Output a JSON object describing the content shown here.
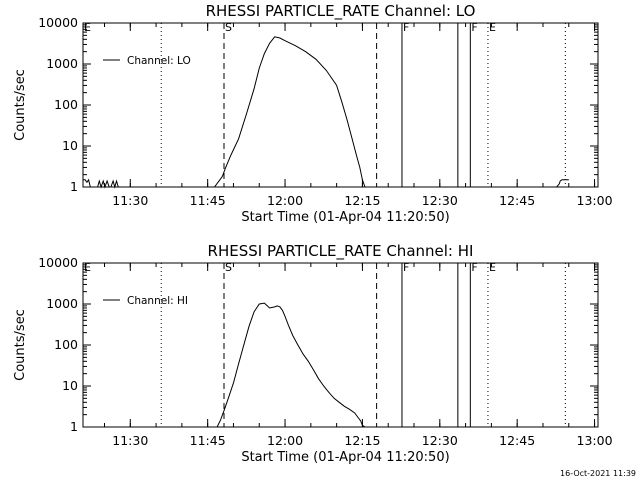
{
  "chart_data": [
    {
      "type": "line",
      "title": "RHESSI PARTICLE_RATE Channel: LO",
      "xlabel": "Start Time (01-Apr-04 11:20:50)",
      "ylabel": "Counts/sec",
      "y_scale": "log",
      "ylim": [
        1,
        10000
      ],
      "xlim": [
        "11:20:50",
        "13:00:40"
      ],
      "y_ticks": [
        "1",
        "10",
        "100",
        "1000",
        "10000"
      ],
      "x_ticks": [
        "11:30",
        "11:45",
        "12:00",
        "12:15",
        "12:30",
        "12:45",
        "13:00"
      ],
      "legend": {
        "position": "top-left",
        "entries": [
          "Channel: LO"
        ]
      },
      "markers": [
        {
          "label": "E",
          "time": "11:20:50",
          "style": "dotted"
        },
        {
          "label": "",
          "time": "11:36:00",
          "style": "dotted"
        },
        {
          "label": "S",
          "time": "11:48:10",
          "style": "dashed"
        },
        {
          "label": "",
          "time": "12:17:45",
          "style": "dashed"
        },
        {
          "label": "F",
          "time": "12:22:40",
          "style": "solid"
        },
        {
          "label": "",
          "time": "12:33:30",
          "style": "solid"
        },
        {
          "label": "F",
          "time": "12:35:55",
          "style": "solid"
        },
        {
          "label": "E",
          "time": "12:39:20",
          "style": "dotted"
        },
        {
          "label": "",
          "time": "12:54:20",
          "style": "dotted"
        }
      ],
      "series": [
        {
          "name": "Channel: LO",
          "x": [
            "11:20:50",
            "11:21:15",
            "11:21:35",
            "11:21:55",
            "11:22:15",
            "11:22:35",
            "11:23:15",
            "11:23:40",
            "11:24:00",
            "11:24:20",
            "11:24:45",
            "11:25:05",
            "11:25:30",
            "11:25:55",
            "11:26:15",
            "11:26:40",
            "11:27:00",
            "11:27:20",
            "11:27:40",
            "11:28:00",
            "11:34:30",
            "11:46:20",
            "11:47:00",
            "11:47:50",
            "11:48:30",
            "11:49:30",
            "11:51:00",
            "11:52:30",
            "11:54:00",
            "11:55:00",
            "11:56:00",
            "11:57:00",
            "11:58:00",
            "11:59:00",
            "12:00:00",
            "12:02:00",
            "12:04:00",
            "12:06:00",
            "12:08:00",
            "12:10:00",
            "12:11:00",
            "12:12:00",
            "12:13:00",
            "12:13:50",
            "12:14:30",
            "12:15:00",
            "12:15:30",
            "12:16:00",
            "12:52:40",
            "12:53:10",
            "12:53:20",
            "12:53:40",
            "12:55:00"
          ],
          "values": [
            1.5,
            1.5,
            1.3,
            1.5,
            1,
            1,
            1,
            1,
            1.4,
            1,
            1.4,
            1,
            1.4,
            1,
            1,
            1.4,
            1,
            1.4,
            1,
            1,
            1,
            1,
            1.3,
            1.8,
            3,
            6,
            15,
            60,
            250,
            800,
            1800,
            3200,
            4600,
            4300,
            3700,
            2800,
            2000,
            1300,
            700,
            300,
            120,
            45,
            15,
            6,
            3,
            1.5,
            1,
            1,
            1,
            1.2,
            1.4,
            1.5,
            1.5
          ]
        }
      ]
    },
    {
      "type": "line",
      "title": "RHESSI PARTICLE_RATE Channel: HI",
      "xlabel": "Start Time (01-Apr-04 11:20:50)",
      "ylabel": "Counts/sec",
      "y_scale": "log",
      "ylim": [
        1,
        10000
      ],
      "xlim": [
        "11:20:50",
        "13:00:40"
      ],
      "y_ticks": [
        "1",
        "10",
        "100",
        "1000",
        "10000"
      ],
      "x_ticks": [
        "11:30",
        "11:45",
        "12:00",
        "12:15",
        "12:30",
        "12:45",
        "13:00"
      ],
      "legend": {
        "position": "top-left",
        "entries": [
          "Channel: HI"
        ]
      },
      "markers": [
        {
          "label": "E",
          "time": "11:20:50",
          "style": "dotted"
        },
        {
          "label": "",
          "time": "11:36:00",
          "style": "dotted"
        },
        {
          "label": "S",
          "time": "11:48:10",
          "style": "dashed"
        },
        {
          "label": "",
          "time": "12:17:45",
          "style": "dashed"
        },
        {
          "label": "F",
          "time": "12:22:40",
          "style": "solid"
        },
        {
          "label": "",
          "time": "12:33:30",
          "style": "solid"
        },
        {
          "label": "F",
          "time": "12:35:55",
          "style": "solid"
        },
        {
          "label": "E",
          "time": "12:39:20",
          "style": "dotted"
        },
        {
          "label": "",
          "time": "12:54:20",
          "style": "dotted"
        }
      ],
      "series": [
        {
          "name": "Channel: HI",
          "x": [
            "11:46:50",
            "11:47:30",
            "11:48:10",
            "11:49:00",
            "11:50:00",
            "11:51:00",
            "11:52:00",
            "11:53:00",
            "11:54:00",
            "11:55:00",
            "11:56:00",
            "11:57:00",
            "11:58:00",
            "11:58:30",
            "11:59:00",
            "11:59:30",
            "12:00:00",
            "12:00:40",
            "12:01:30",
            "12:02:30",
            "12:03:30",
            "12:04:30",
            "12:05:30",
            "12:06:30",
            "12:07:30",
            "12:08:30",
            "12:09:30",
            "12:10:30",
            "12:11:30",
            "12:12:30",
            "12:13:30",
            "12:14:00",
            "12:14:40",
            "12:15:00",
            "12:15:30"
          ],
          "values": [
            1,
            1.5,
            2.5,
            5,
            12,
            35,
            100,
            280,
            650,
            1000,
            1050,
            800,
            850,
            900,
            850,
            700,
            500,
            300,
            170,
            100,
            60,
            40,
            25,
            15,
            10,
            7,
            5,
            4,
            3.2,
            2.7,
            2.2,
            1.8,
            1.4,
            1.1,
            1
          ]
        }
      ]
    }
  ],
  "footer": {
    "timestamp": "16-Oct-2021 11:39"
  }
}
